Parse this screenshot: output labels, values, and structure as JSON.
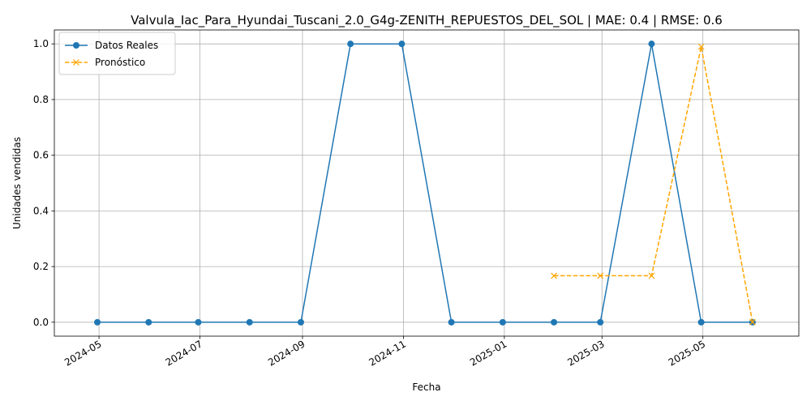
{
  "chart_data": {
    "type": "line",
    "title": "Valvula_Iac_Para_Hyundai_Tuscani_2.0_G4g-ZENITH_REPUESTOS_DEL_SOL | MAE: 0.4 | RMSE: 0.6",
    "xlabel": "Fecha",
    "ylabel": "Unidades vendidas",
    "xlim": [
      "2024-04-04",
      "2025-06-28"
    ],
    "ylim": [
      -0.05,
      1.05
    ],
    "x_ticks": [
      "2024-05",
      "2024-07",
      "2024-09",
      "2024-11",
      "2025-01",
      "2025-03",
      "2025-05"
    ],
    "x_tick_dates": [
      "2024-05-01",
      "2024-07-01",
      "2024-09-01",
      "2024-11-01",
      "2025-01-01",
      "2025-03-01",
      "2025-05-01"
    ],
    "y_ticks": [
      "0.0",
      "0.2",
      "0.4",
      "0.6",
      "0.8",
      "1.0"
    ],
    "y_tick_values": [
      0.0,
      0.2,
      0.4,
      0.6,
      0.8,
      1.0
    ],
    "grid": true,
    "legend_position": "top-left",
    "series": [
      {
        "name": "Datos Reales",
        "color": "#1f77b4",
        "marker": "circle",
        "line_style": "solid",
        "x": [
          "2024-04-30",
          "2024-05-31",
          "2024-06-30",
          "2024-07-31",
          "2024-08-31",
          "2024-09-30",
          "2024-10-31",
          "2024-11-30",
          "2024-12-31",
          "2025-01-31",
          "2025-02-28",
          "2025-03-31",
          "2025-04-30",
          "2025-05-31"
        ],
        "values": [
          0,
          0,
          0,
          0,
          0,
          1,
          1,
          0,
          0,
          0,
          0,
          1,
          0,
          0
        ]
      },
      {
        "name": "Pronóstico",
        "color": "#ffa500",
        "marker": "x",
        "line_style": "dashed",
        "x": [
          "2025-01-31",
          "2025-02-28",
          "2025-03-31",
          "2025-04-30",
          "2025-05-31"
        ],
        "values": [
          0.167,
          0.167,
          0.167,
          0.99,
          0.0
        ]
      }
    ]
  }
}
